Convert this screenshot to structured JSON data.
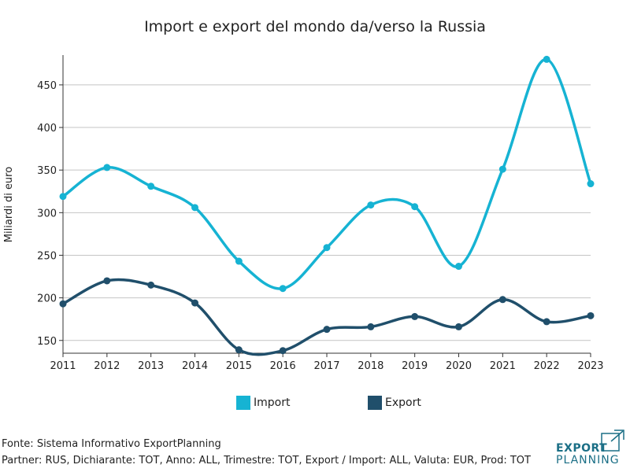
{
  "chart_data": {
    "type": "line",
    "title": "Import e export del mondo da/verso la Russia",
    "xlabel": "",
    "ylabel": "Miliardi di euro",
    "categories": [
      "2011",
      "2012",
      "2013",
      "2014",
      "2015",
      "2016",
      "2017",
      "2018",
      "2019",
      "2020",
      "2021",
      "2022",
      "2023"
    ],
    "yticks": [
      150,
      200,
      250,
      300,
      350,
      400,
      450
    ],
    "ylim": [
      135,
      485
    ],
    "grid": "horizontal",
    "legend_position": "bottom",
    "series": [
      {
        "name": "Import",
        "color": "#16b3d3",
        "values": [
          319,
          353,
          331,
          306,
          243,
          211,
          259,
          309,
          307,
          237,
          351,
          480,
          334
        ]
      },
      {
        "name": "Export",
        "color": "#204f6b",
        "values": [
          193,
          220,
          215,
          194,
          139,
          138,
          163,
          166,
          178,
          166,
          198,
          172,
          179
        ]
      }
    ]
  },
  "footer": {
    "source": "Fonte: Sistema Informativo ExportPlanning",
    "filters": "Partner: RUS, Dichiarante: TOT, Anno: ALL, Trimestre: TOT, Export / Import: ALL, Valuta: EUR, Prod: TOT"
  },
  "logo": {
    "line1": "EXPORT",
    "line2": "PLANNING",
    "color": "#1b6f86"
  }
}
